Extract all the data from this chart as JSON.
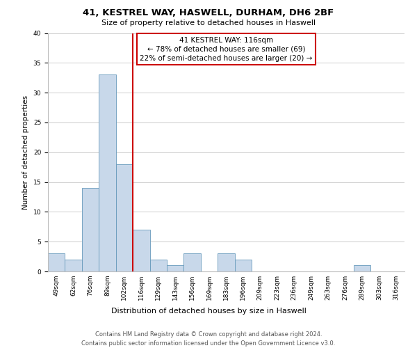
{
  "title": "41, KESTREL WAY, HASWELL, DURHAM, DH6 2BF",
  "subtitle": "Size of property relative to detached houses in Haswell",
  "xlabel": "Distribution of detached houses by size in Haswell",
  "ylabel": "Number of detached properties",
  "bin_labels": [
    "49sqm",
    "62sqm",
    "76sqm",
    "89sqm",
    "102sqm",
    "116sqm",
    "129sqm",
    "143sqm",
    "156sqm",
    "169sqm",
    "183sqm",
    "196sqm",
    "209sqm",
    "223sqm",
    "236sqm",
    "249sqm",
    "263sqm",
    "276sqm",
    "289sqm",
    "303sqm",
    "316sqm"
  ],
  "bin_counts": [
    3,
    2,
    14,
    33,
    18,
    7,
    2,
    1,
    3,
    0,
    3,
    2,
    0,
    0,
    0,
    0,
    0,
    0,
    1,
    0,
    0
  ],
  "bar_color": "#c8d8ea",
  "bar_edge_color": "#6699bb",
  "highlight_line_color": "#cc0000",
  "annotation_line1": "41 KESTREL WAY: 116sqm",
  "annotation_line2": "← 78% of detached houses are smaller (69)",
  "annotation_line3": "22% of semi-detached houses are larger (20) →",
  "annotation_box_color": "white",
  "annotation_box_edge_color": "#cc0000",
  "ylim": [
    0,
    40
  ],
  "yticks": [
    0,
    5,
    10,
    15,
    20,
    25,
    30,
    35,
    40
  ],
  "footer_line1": "Contains HM Land Registry data © Crown copyright and database right 2024.",
  "footer_line2": "Contains public sector information licensed under the Open Government Licence v3.0.",
  "background_color": "#ffffff",
  "grid_color": "#cccccc",
  "title_fontsize": 9.5,
  "subtitle_fontsize": 8,
  "ylabel_fontsize": 7.5,
  "xlabel_fontsize": 8,
  "tick_fontsize": 6.5,
  "annotation_fontsize": 7.5,
  "footer_fontsize": 6
}
